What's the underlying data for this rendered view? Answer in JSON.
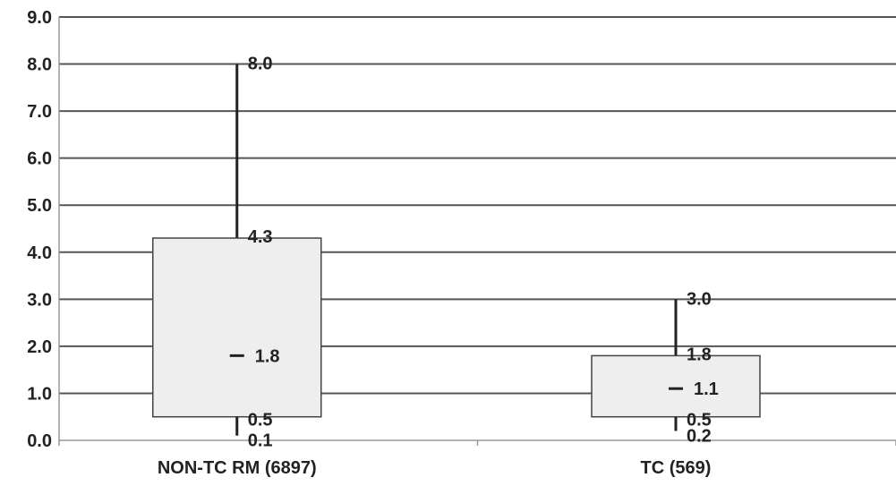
{
  "chart_data": {
    "type": "boxplot",
    "title": "",
    "xlabel": "",
    "ylabel": "",
    "ylim": [
      0,
      9
    ],
    "yticks": [
      "0.0",
      "1.0",
      "2.0",
      "3.0",
      "4.0",
      "5.0",
      "6.0",
      "7.0",
      "8.0",
      "9.0"
    ],
    "grid": true,
    "categories": [
      "NON-TC RM (6897)",
      "TC (569)"
    ],
    "boxes": [
      {
        "category": "NON-TC RM (6897)",
        "min": 0.1,
        "q1": 0.5,
        "median": 1.8,
        "q3": 4.3,
        "max": 8.0,
        "labels": {
          "min": "0.1",
          "q1": "0.5",
          "median": "1.8",
          "q3": "4.3",
          "max": "8.0"
        }
      },
      {
        "category": "TC (569)",
        "min": 0.2,
        "q1": 0.5,
        "median": 1.1,
        "q3": 1.8,
        "max": 3.0,
        "labels": {
          "min": "0.2",
          "q1": "0.5",
          "median": "1.1",
          "q3": "1.8",
          "max": "3.0"
        }
      }
    ],
    "colors": {
      "box_fill": "#eeeeee",
      "box_stroke": "#444444",
      "line": "#222222",
      "grid": "#555555"
    }
  }
}
